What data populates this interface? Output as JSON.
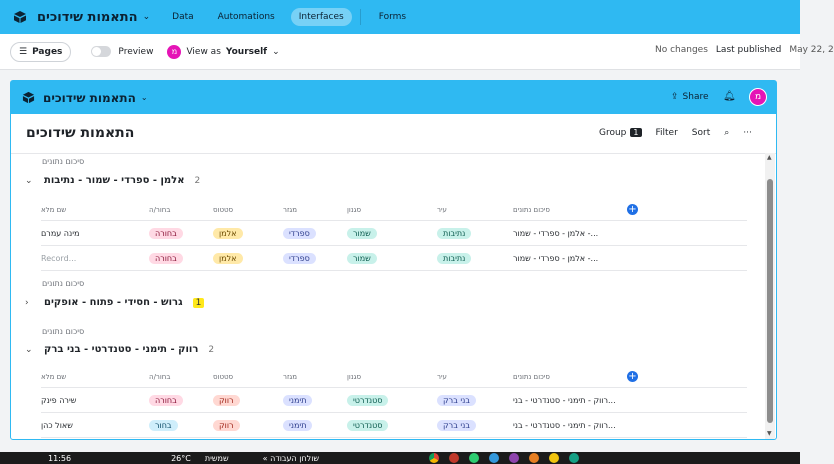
{
  "topbar": {
    "title": "התאמות שידוכים",
    "nav": [
      "Data",
      "Automations",
      "Interfaces",
      "Forms"
    ],
    "active_nav": "Interfaces"
  },
  "subbar": {
    "pages_label": "Pages",
    "preview_label": "Preview",
    "view_as_prefix": "View as",
    "view_as_user": "Yourself",
    "avatar_letter": "מ",
    "status": "No changes",
    "last_published_label": "Last published",
    "last_published_date": "May 22, 2"
  },
  "interface": {
    "title": "התאמות שידוכים",
    "share_label": "Share",
    "avatar_letter": "מ",
    "page_title": "התאמות שידוכים",
    "toolbar": {
      "group_label": "Group",
      "group_count": "1",
      "filter_label": "Filter",
      "sort_label": "Sort"
    }
  },
  "columns": [
    "סיכום נתונים",
    "עיר",
    "סגנון",
    "מגזר",
    "סטטוס",
    "בחור/ה",
    "שם מלא"
  ],
  "groups": [
    {
      "section_label": "סיכום נתונים",
      "name": "אלמן - ספרדי - שמור - נתיבות",
      "count": "2",
      "expanded": true,
      "rows": [
        {
          "summary": "אלמן - ספרדי - שמור -...",
          "city": "נתיבות",
          "style": "שמור",
          "sector": "ספרדי",
          "status": "אלמן",
          "gender": "בחורה",
          "name": "מינה עמרם"
        },
        {
          "summary": "אלמן - ספרדי - שמור -...",
          "city": "נתיבות",
          "style": "שמור",
          "sector": "ספרדי",
          "status": "אלמן",
          "gender": "בחורה",
          "name": "Record..."
        }
      ]
    },
    {
      "section_label": "סיכום נתונים",
      "name": "גרוש - חסידי - פתוח - אופקים",
      "count": "1",
      "expanded": false,
      "rows": []
    },
    {
      "section_label": "סיכום נתונים",
      "name": "רווק - תימני - סטנדרטי - בני ברק",
      "count": "2",
      "expanded": true,
      "rows": [
        {
          "summary": "רווק - תימני - סטנדרטי - בני...",
          "city": "בני ברק",
          "style": "סטנדרטי",
          "sector": "תימני",
          "status": "רווק",
          "gender": "בחורה",
          "name": "שירה פינק"
        },
        {
          "summary": "רווק - תימני - סטנדרטי - בני...",
          "city": "בני ברק",
          "style": "סטנדרטי",
          "sector": "תימני",
          "status": "רווק",
          "gender": "בחור",
          "name": "שאול כהן"
        }
      ]
    }
  ],
  "taskbar": {
    "time": "11:56",
    "weather": "26°C",
    "item1": "שמשית",
    "item2": "« שולחן העבודה"
  },
  "colors": {
    "accent": "#2fb9f2",
    "avatar": "#e514b6",
    "add_button": "#1f6fe5"
  }
}
